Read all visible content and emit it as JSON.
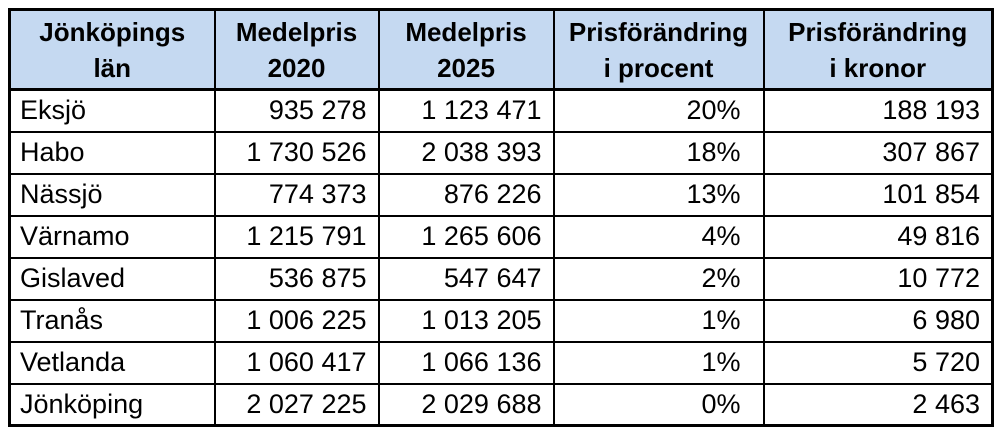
{
  "colors": {
    "header_bg": "#c5d9f1",
    "border": "#000000",
    "text": "#000000",
    "page_bg": "#ffffff"
  },
  "table": {
    "headers": [
      {
        "line1": "Jönköpings",
        "line2": "län"
      },
      {
        "line1": "Medelpris",
        "line2": "2020"
      },
      {
        "line1": "Medelpris",
        "line2": "2025"
      },
      {
        "line1": "Prisförändring",
        "line2": "i procent"
      },
      {
        "line1": "Prisförändring",
        "line2": "i kronor"
      }
    ],
    "rows": [
      {
        "municipality": "Eksjö",
        "price_2020": "935 278",
        "price_2025": "1 123 471",
        "change_percent": "20%",
        "change_kronor": "188 193"
      },
      {
        "municipality": "Habo",
        "price_2020": "1 730 526",
        "price_2025": "2 038 393",
        "change_percent": "18%",
        "change_kronor": "307 867"
      },
      {
        "municipality": "Nässjö",
        "price_2020": "774 373",
        "price_2025": "876 226",
        "change_percent": "13%",
        "change_kronor": "101 854"
      },
      {
        "municipality": "Värnamo",
        "price_2020": "1 215 791",
        "price_2025": "1 265 606",
        "change_percent": "4%",
        "change_kronor": "49 816"
      },
      {
        "municipality": "Gislaved",
        "price_2020": "536 875",
        "price_2025": "547 647",
        "change_percent": "2%",
        "change_kronor": "10 772"
      },
      {
        "municipality": "Tranås",
        "price_2020": "1 006 225",
        "price_2025": "1 013 205",
        "change_percent": "1%",
        "change_kronor": "6 980"
      },
      {
        "municipality": "Vetlanda",
        "price_2020": "1 060 417",
        "price_2025": "1 066 136",
        "change_percent": "1%",
        "change_kronor": "5 720"
      },
      {
        "municipality": "Jönköping",
        "price_2020": "2 027 225",
        "price_2025": "2 029 688",
        "change_percent": "0%",
        "change_kronor": "2 463"
      }
    ]
  },
  "chart_data": {
    "type": "table",
    "title": "Jönköpings län",
    "columns": [
      "Jönköpings län",
      "Medelpris 2020",
      "Medelpris 2025",
      "Prisförändring i procent",
      "Prisförändring i kronor"
    ],
    "rows": [
      [
        "Eksjö",
        935278,
        1123471,
        "20%",
        188193
      ],
      [
        "Habo",
        1730526,
        2038393,
        "18%",
        307867
      ],
      [
        "Nässjö",
        774373,
        876226,
        "13%",
        101854
      ],
      [
        "Värnamo",
        1215791,
        1265606,
        "4%",
        49816
      ],
      [
        "Gislaved",
        536875,
        547647,
        "2%",
        10772
      ],
      [
        "Tranås",
        1006225,
        1013205,
        "1%",
        6980
      ],
      [
        "Vetlanda",
        1060417,
        1066136,
        "1%",
        5720
      ],
      [
        "Jönköping",
        2027225,
        2029688,
        "0%",
        2463
      ]
    ]
  }
}
